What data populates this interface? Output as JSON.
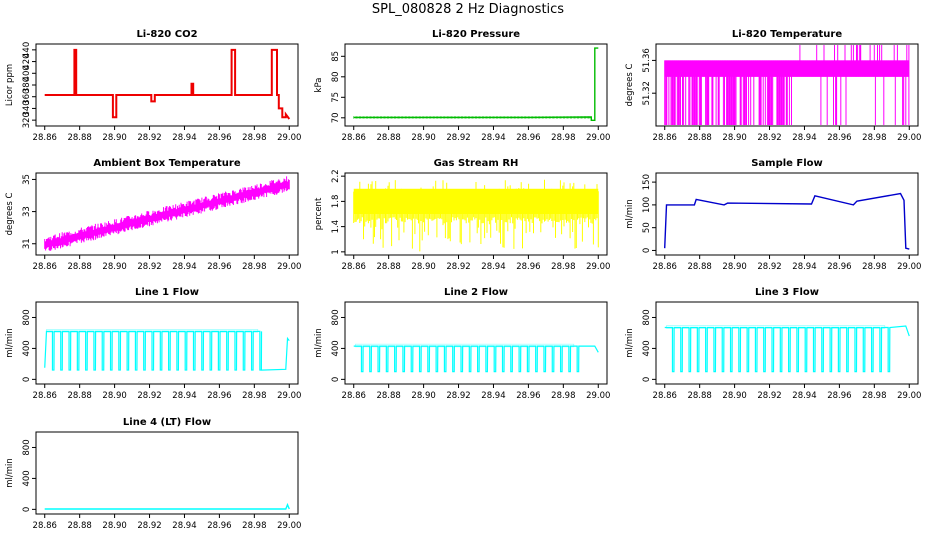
{
  "title": "SPL_080828  2 Hz Diagnostics",
  "x_ticks": [
    "28.86",
    "28.88",
    "28.90",
    "28.92",
    "28.94",
    "28.96",
    "28.98",
    "29.00"
  ],
  "chart_data": [
    {
      "type": "line",
      "title": "Li-820 CO2",
      "ylabel": "Licor ppm",
      "color": "#ee0000",
      "xlim": [
        28.855,
        29.005
      ],
      "ylim": [
        310,
        450
      ],
      "yticks": [
        320,
        340,
        360,
        380,
        400,
        420,
        440
      ],
      "xticks": [
        28.86,
        28.88,
        28.9,
        28.92,
        28.94,
        28.96,
        28.98,
        29.0
      ],
      "x": [
        28.86,
        28.877,
        28.877,
        28.878,
        28.878,
        28.899,
        28.899,
        28.901,
        28.901,
        28.921,
        28.921,
        28.923,
        28.923,
        28.944,
        28.944,
        28.945,
        28.945,
        28.967,
        28.967,
        28.969,
        28.969,
        28.99,
        28.99,
        28.993,
        28.993,
        28.994,
        28.994,
        28.996,
        28.996,
        28.998,
        28.998,
        29.0
      ],
      "y": [
        363,
        363,
        440,
        440,
        363,
        363,
        325,
        325,
        363,
        363,
        352,
        352,
        363,
        363,
        382,
        382,
        363,
        363,
        440,
        440,
        363,
        363,
        440,
        440,
        363,
        363,
        340,
        340,
        325,
        325,
        330,
        322
      ]
    },
    {
      "type": "line",
      "title": "Li-820 Pressure",
      "ylabel": "kPa",
      "color": "#00bb00",
      "xlim": [
        28.855,
        29.005
      ],
      "ylim": [
        68,
        88
      ],
      "yticks": [
        70,
        75,
        80,
        85
      ],
      "xticks": [
        28.86,
        28.88,
        28.9,
        28.92,
        28.94,
        28.96,
        28.98,
        29.0
      ],
      "x": [
        28.86,
        28.9,
        28.96,
        28.996,
        28.996,
        28.998,
        28.998,
        29.0
      ],
      "y": [
        70.1,
        70.1,
        70.1,
        70.2,
        69.4,
        69.4,
        87,
        87
      ]
    },
    {
      "type": "line",
      "title": "Li-820 Temperature",
      "ylabel": "degrees C",
      "color": "#ff00ff",
      "xlim": [
        28.855,
        29.005
      ],
      "ylim": [
        51.28,
        51.38
      ],
      "yticks": [
        51.32,
        51.36
      ],
      "xticks": [
        28.86,
        28.88,
        28.9,
        28.92,
        28.94,
        28.96,
        28.98,
        29.0
      ],
      "x": [
        28.86,
        29.0
      ],
      "y": [
        51.34,
        51.34
      ]
    },
    {
      "type": "line",
      "title": "Ambient Box Temperature",
      "ylabel": "degrees C",
      "color": "#ff00ff",
      "xlim": [
        28.855,
        29.005
      ],
      "ylim": [
        30.3,
        35.4
      ],
      "yticks": [
        31,
        33,
        35
      ],
      "xticks": [
        28.86,
        28.88,
        28.9,
        28.92,
        28.94,
        28.96,
        28.98,
        29.0
      ],
      "x": [
        28.86,
        29.0
      ],
      "y": [
        31.0,
        34.8
      ]
    },
    {
      "type": "line",
      "title": "Gas Stream RH",
      "ylabel": "percent",
      "color": "#ffff00",
      "xlim": [
        28.855,
        29.005
      ],
      "ylim": [
        0.95,
        2.25
      ],
      "yticks": [
        1.0,
        1.4,
        1.8,
        2.2
      ],
      "xticks": [
        28.86,
        28.88,
        28.9,
        28.92,
        28.94,
        28.96,
        28.98,
        29.0
      ],
      "x": [
        28.86,
        29.0
      ],
      "y": [
        1.75,
        1.75
      ]
    },
    {
      "type": "line",
      "title": "Sample Flow",
      "ylabel": "ml/min",
      "color": "#0000cc",
      "xlim": [
        28.855,
        29.005
      ],
      "ylim": [
        -10,
        170
      ],
      "yticks": [
        0,
        50,
        100,
        150
      ],
      "xticks": [
        28.86,
        28.88,
        28.9,
        28.92,
        28.94,
        28.96,
        28.98,
        29.0
      ],
      "x": [
        28.86,
        28.861,
        28.877,
        28.878,
        28.894,
        28.896,
        28.944,
        28.946,
        28.968,
        28.97,
        28.995,
        28.997,
        28.998,
        29.0
      ],
      "y": [
        5,
        100,
        100,
        112,
        100,
        104,
        102,
        120,
        100,
        108,
        125,
        110,
        5,
        3
      ]
    },
    {
      "type": "line",
      "title": "Line 1 Flow",
      "ylabel": "ml/min",
      "color": "#00ffff",
      "xlim": [
        28.855,
        29.005
      ],
      "ylim": [
        -60,
        1000
      ],
      "yticks": [
        0,
        400,
        800
      ],
      "xticks": [
        28.86,
        28.88,
        28.9,
        28.92,
        28.94,
        28.96,
        28.98,
        29.0
      ],
      "x": [
        28.86,
        28.862
      ],
      "y": [
        150,
        620
      ]
    },
    {
      "type": "line",
      "title": "Line 2 Flow",
      "ylabel": "ml/min",
      "color": "#00ffff",
      "xlim": [
        28.855,
        29.005
      ],
      "ylim": [
        -60,
        1000
      ],
      "yticks": [
        0,
        400,
        800
      ],
      "xticks": [
        28.86,
        28.88,
        28.9,
        28.92,
        28.94,
        28.96,
        28.98,
        29.0
      ],
      "x": [
        28.86,
        28.998
      ],
      "y": [
        430,
        430
      ]
    },
    {
      "type": "line",
      "title": "Line 3 Flow",
      "ylabel": "ml/min",
      "color": "#00ffff",
      "xlim": [
        28.855,
        29.005
      ],
      "ylim": [
        -60,
        1000
      ],
      "yticks": [
        0,
        400,
        800
      ],
      "xticks": [
        28.86,
        28.88,
        28.9,
        28.92,
        28.94,
        28.96,
        28.98,
        29.0
      ],
      "x": [
        28.86,
        28.998
      ],
      "y": [
        670,
        670
      ]
    },
    {
      "type": "line",
      "title": "Line 4 (LT) Flow",
      "ylabel": "ml/min",
      "color": "#00ffff",
      "xlim": [
        28.855,
        29.005
      ],
      "ylim": [
        -60,
        1000
      ],
      "yticks": [
        0,
        400,
        800
      ],
      "xticks": [
        28.86,
        28.88,
        28.9,
        28.92,
        28.94,
        28.96,
        28.98,
        29.0
      ],
      "x": [
        28.86,
        28.998,
        28.999,
        29.0
      ],
      "y": [
        5,
        5,
        60,
        5
      ]
    }
  ]
}
